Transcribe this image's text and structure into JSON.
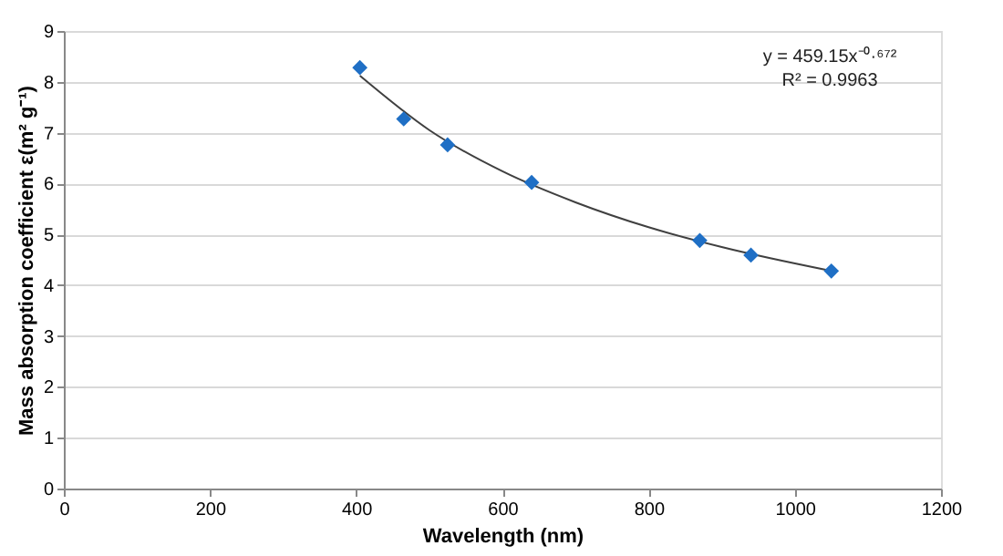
{
  "chart_data": {
    "type": "scatter",
    "xlabel": "Wavelength (nm)",
    "ylabel": "Mass absorption coefficient ε(m² g⁻¹)",
    "xlim": [
      0,
      1200
    ],
    "xticks": [
      0,
      200,
      400,
      600,
      800,
      1000,
      1200
    ],
    "ylim": [
      0,
      9
    ],
    "yticks": [
      0,
      1,
      2,
      3,
      4,
      5,
      6,
      7,
      8,
      9
    ],
    "grid": "y",
    "marker": "diamond",
    "series": [
      {
        "color": "#1f6fc5",
        "x": [
          405,
          465,
          525,
          640,
          870,
          940,
          1050
        ],
        "values": [
          8.28,
          7.27,
          6.76,
          6.02,
          4.88,
          4.59,
          4.28
        ]
      },
      {
        "type": "line",
        "color": "#404040",
        "marker": "none",
        "x": [
          405,
          500,
          600,
          700,
          800,
          900,
          1050
        ],
        "values": [
          8.12,
          7.05,
          6.24,
          5.63,
          5.14,
          4.75,
          4.28
        ]
      }
    ],
    "annotations": [
      "y = 459.15x⁻⁰·⁶⁷²",
      "R² = 0.9963"
    ]
  }
}
